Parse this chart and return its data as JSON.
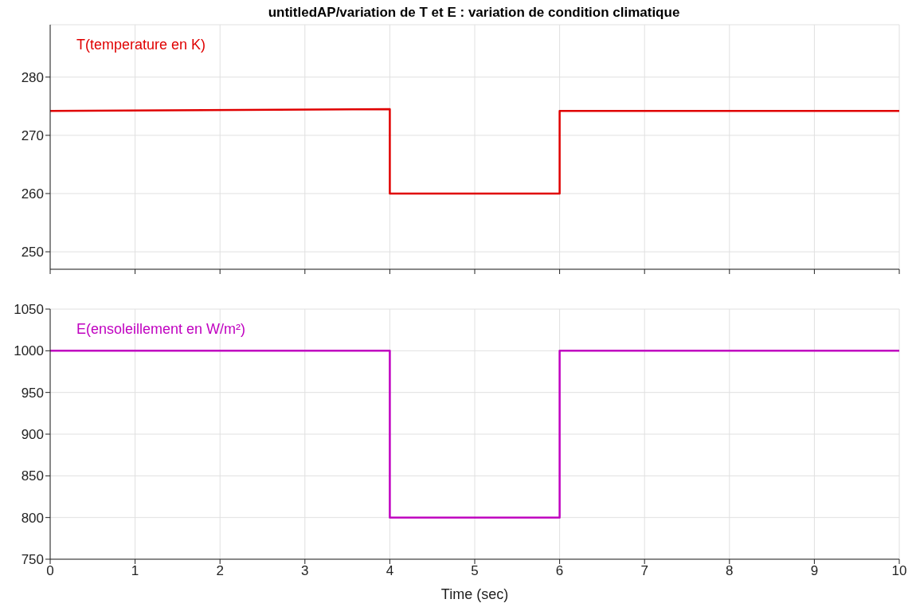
{
  "chart_data": [
    {
      "type": "line",
      "title": "untitledAP/variation de T et E : variation de condition climatique",
      "series": [
        {
          "name": "T(temperature en K)",
          "color": "#e00000",
          "x": [
            0,
            4,
            4,
            6,
            6,
            10
          ],
          "values": [
            274.2,
            274.5,
            260,
            260,
            274.2,
            274.2
          ]
        }
      ],
      "xlim": [
        0,
        10
      ],
      "xticks": [
        0,
        1,
        2,
        3,
        4,
        5,
        6,
        7,
        8,
        9,
        10
      ],
      "ylim": [
        247,
        289
      ],
      "yticks": [
        250,
        260,
        270,
        280
      ],
      "grid": true,
      "tick_labels": "y",
      "line_style": "solid"
    },
    {
      "type": "line",
      "xlabel": "Time (sec)",
      "series": [
        {
          "name": "E(ensoleillement en W/m²)",
          "color": "#c000c0",
          "x": [
            0,
            4,
            4,
            6,
            6,
            10
          ],
          "values": [
            1000,
            1000,
            800,
            800,
            1000,
            1000
          ]
        }
      ],
      "xlim": [
        0,
        10
      ],
      "xticks": [
        0,
        1,
        2,
        3,
        4,
        5,
        6,
        7,
        8,
        9,
        10
      ],
      "ylim": [
        750,
        1050
      ],
      "yticks": [
        750,
        800,
        850,
        900,
        950,
        1000,
        1050
      ],
      "grid": true,
      "line_style": "solid"
    }
  ]
}
